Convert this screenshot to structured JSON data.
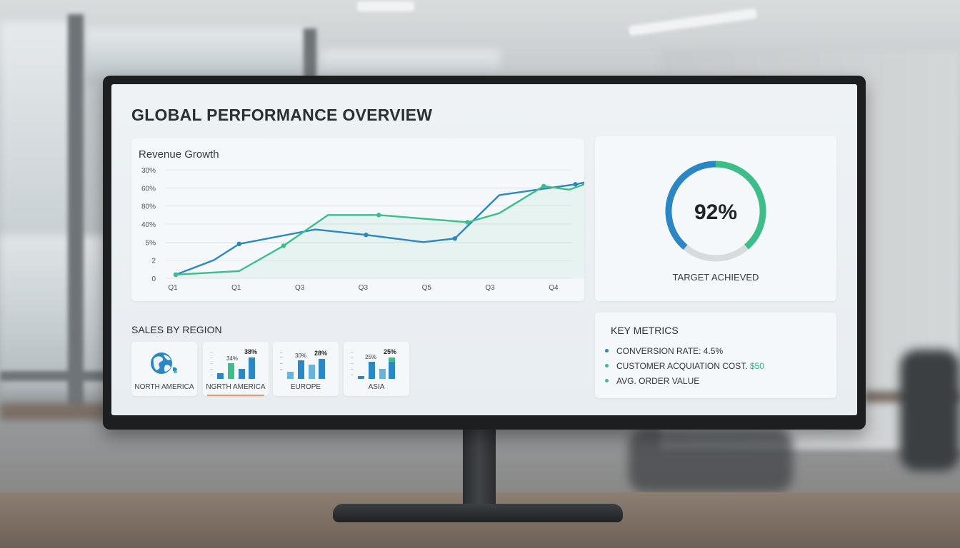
{
  "colors": {
    "blue": "#2a86c4",
    "green": "#3dbd8a",
    "gauge_track": "#d7dbde",
    "accent_orange": "#e59a6a"
  },
  "dashboard": {
    "title": "GLOBAL PERFORMANCE OVERVIEW"
  },
  "revenue": {
    "title": "Revenue Growth",
    "y_ticks": [
      "30%",
      "60%",
      "80%",
      "40%",
      "5%",
      "2",
      "0"
    ],
    "x_ticks": [
      "Q1",
      "Q1",
      "Q3",
      "Q3",
      "Q5",
      "Q3",
      "Q4"
    ]
  },
  "gauge": {
    "value_text": "92%",
    "value": 0.92,
    "label": "TARGET ACHIEVED"
  },
  "sales": {
    "title": "SALES BY REGION",
    "regions": [
      {
        "label": "NORTH AMERICA",
        "icon": "globe-icon"
      },
      {
        "label": "NGRTH AMERICA",
        "bar_labels": [
          "34%",
          "38%"
        ],
        "active": true
      },
      {
        "label": "EUROPE",
        "bar_labels": [
          "30%",
          "28%"
        ]
      },
      {
        "label": "ASIA",
        "bar_labels": [
          "25%",
          "25%"
        ]
      }
    ]
  },
  "metrics": {
    "title": "KEY METRICS",
    "items": [
      {
        "label": "CONVERSION RATE: 4.5%",
        "value": ""
      },
      {
        "label": "CUSTOMER ACQUIATION COST.",
        "value": "$50"
      },
      {
        "label": "AVG. ORDER VALUE",
        "value": ""
      }
    ]
  },
  "chart_data": {
    "type": "line",
    "title": "Revenue Growth",
    "xlabel": "",
    "ylabel": "",
    "categories": [
      "Q1",
      "Q1",
      "Q3",
      "Q3",
      "Q5",
      "Q3",
      "Q4"
    ],
    "y_tick_labels": [
      "30%",
      "60%",
      "80%",
      "40%",
      "5%",
      "2",
      "0"
    ],
    "ylim": [
      0,
      6
    ],
    "grid": true,
    "series": [
      {
        "color": "#2a86c4",
        "points": [
          [
            0,
            0.2
          ],
          [
            0.6,
            1.0
          ],
          [
            1,
            1.9
          ],
          [
            2.2,
            2.7
          ],
          [
            3,
            2.4
          ],
          [
            3.9,
            2.0
          ],
          [
            4.4,
            2.2
          ],
          [
            5.1,
            4.6
          ],
          [
            6.3,
            5.2
          ],
          [
            6.6,
            5.4
          ]
        ]
      },
      {
        "color": "#3dbd8a",
        "points": [
          [
            0,
            0.2
          ],
          [
            1,
            0.4
          ],
          [
            1.7,
            1.8
          ],
          [
            2.4,
            3.5
          ],
          [
            3.2,
            3.5
          ],
          [
            3.9,
            3.3
          ],
          [
            4.6,
            3.1
          ],
          [
            5.1,
            3.6
          ],
          [
            5.8,
            5.1
          ],
          [
            6.2,
            4.9
          ],
          [
            6.6,
            5.4
          ]
        ]
      }
    ]
  }
}
